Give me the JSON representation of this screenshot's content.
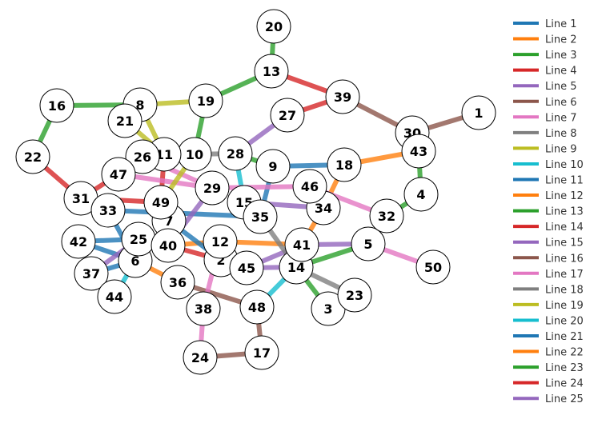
{
  "legend": [
    {
      "name": "Line 1",
      "color": "#1f77b4"
    },
    {
      "name": "Line 2",
      "color": "#ff7f0e"
    },
    {
      "name": "Line 3",
      "color": "#2ca02c"
    },
    {
      "name": "Line 4",
      "color": "#d62728"
    },
    {
      "name": "Line 5",
      "color": "#9467bd"
    },
    {
      "name": "Line 6",
      "color": "#8c564b"
    },
    {
      "name": "Line 7",
      "color": "#e377c2"
    },
    {
      "name": "Line 8",
      "color": "#7f7f7f"
    },
    {
      "name": "Line 9",
      "color": "#bcbd22"
    },
    {
      "name": "Line 10",
      "color": "#17becf"
    },
    {
      "name": "Line 11",
      "color": "#1f77b4"
    },
    {
      "name": "Line 12",
      "color": "#ff7f0e"
    },
    {
      "name": "Line 13",
      "color": "#2ca02c"
    },
    {
      "name": "Line 14",
      "color": "#d62728"
    },
    {
      "name": "Line 15",
      "color": "#9467bd"
    },
    {
      "name": "Line 16",
      "color": "#8c564b"
    },
    {
      "name": "Line 17",
      "color": "#e377c2"
    },
    {
      "name": "Line 18",
      "color": "#7f7f7f"
    },
    {
      "name": "Line 19",
      "color": "#bcbd22"
    },
    {
      "name": "Line 20",
      "color": "#17becf"
    },
    {
      "name": "Line 21",
      "color": "#1f77b4"
    },
    {
      "name": "Line 22",
      "color": "#ff7f0e"
    },
    {
      "name": "Line 23",
      "color": "#2ca02c"
    },
    {
      "name": "Line 24",
      "color": "#d62728"
    },
    {
      "name": "Line 25",
      "color": "#9467bd"
    }
  ],
  "stations": [
    "1",
    "2",
    "3",
    "4",
    "5",
    "6",
    "7",
    "8",
    "9",
    "10",
    "11",
    "12",
    "13",
    "14",
    "15",
    "16",
    "17",
    "20",
    "21",
    "22",
    "23",
    "24",
    "25",
    "26",
    "27",
    "28",
    "29",
    "30",
    "31",
    "32",
    "33",
    "34",
    "35",
    "36",
    "37",
    "38",
    "39",
    "40",
    "41",
    "42",
    "43",
    "44",
    "45",
    "46",
    "47",
    "48",
    "49",
    "50",
    "19",
    "18"
  ],
  "edges": [
    {
      "from": "20",
      "to": "13",
      "color": "#2ca02c"
    },
    {
      "from": "13",
      "to": "19",
      "color": "#2ca02c"
    },
    {
      "from": "19",
      "to": "10",
      "color": "#2ca02c"
    },
    {
      "from": "13",
      "to": "39",
      "color": "#d62728"
    },
    {
      "from": "39",
      "to": "27",
      "color": "#d62728"
    },
    {
      "from": "39",
      "to": "30",
      "color": "#8c564b"
    },
    {
      "from": "30",
      "to": "1",
      "color": "#8c564b"
    },
    {
      "from": "16",
      "to": "8",
      "color": "#2ca02c"
    },
    {
      "from": "16",
      "to": "22",
      "color": "#2ca02c"
    },
    {
      "from": "8",
      "to": "19",
      "color": "#bcbd22"
    },
    {
      "from": "8",
      "to": "11",
      "color": "#bcbd22"
    },
    {
      "from": "21",
      "to": "11",
      "color": "#bcbd22"
    },
    {
      "from": "22",
      "to": "31",
      "color": "#d62728"
    },
    {
      "from": "31",
      "to": "47",
      "color": "#d62728"
    },
    {
      "from": "31",
      "to": "49",
      "color": "#d62728"
    },
    {
      "from": "11",
      "to": "49",
      "color": "#d62728"
    },
    {
      "from": "27",
      "to": "28",
      "color": "#9467bd"
    },
    {
      "from": "10",
      "to": "28",
      "color": "#7f7f7f"
    },
    {
      "from": "28",
      "to": "9",
      "color": "#2ca02c"
    },
    {
      "from": "9",
      "to": "18",
      "color": "#1f77b4"
    },
    {
      "from": "28",
      "to": "15",
      "color": "#17becf"
    },
    {
      "from": "9",
      "to": "35",
      "color": "#1f77b4"
    },
    {
      "from": "18",
      "to": "43",
      "color": "#ff7f0e"
    },
    {
      "from": "43",
      "to": "4",
      "color": "#2ca02c"
    },
    {
      "from": "4",
      "to": "32",
      "color": "#2ca02c"
    },
    {
      "from": "18",
      "to": "34",
      "color": "#ff7f0e"
    },
    {
      "from": "34",
      "to": "41",
      "color": "#ff7f0e"
    },
    {
      "from": "47",
      "to": "29",
      "color": "#e377c2"
    },
    {
      "from": "29",
      "to": "46",
      "color": "#e377c2"
    },
    {
      "from": "46",
      "to": "32",
      "color": "#e377c2"
    },
    {
      "from": "26",
      "to": "29",
      "color": "#e377c2"
    },
    {
      "from": "15",
      "to": "34",
      "color": "#9467bd"
    },
    {
      "from": "10",
      "to": "49",
      "color": "#bcbd22"
    },
    {
      "from": "33",
      "to": "35",
      "color": "#1f77b4"
    },
    {
      "from": "33",
      "to": "6",
      "color": "#1f77b4"
    },
    {
      "from": "42",
      "to": "25",
      "color": "#1f77b4"
    },
    {
      "from": "42",
      "to": "6",
      "color": "#1f77b4"
    },
    {
      "from": "37",
      "to": "6",
      "color": "#1f77b4"
    },
    {
      "from": "37",
      "to": "25",
      "color": "#9467bd"
    },
    {
      "from": "44",
      "to": "6",
      "color": "#17becf"
    },
    {
      "from": "6",
      "to": "36",
      "color": "#ff7f0e"
    },
    {
      "from": "40",
      "to": "12",
      "color": "#ff7f0e"
    },
    {
      "from": "12",
      "to": "41",
      "color": "#ff7f0e"
    },
    {
      "from": "7",
      "to": "2",
      "color": "#1f77b4"
    },
    {
      "from": "40",
      "to": "2",
      "color": "#d62728"
    },
    {
      "from": "2",
      "to": "45",
      "color": "#17becf"
    },
    {
      "from": "45",
      "to": "14",
      "color": "#9467bd"
    },
    {
      "from": "41",
      "to": "5",
      "color": "#9467bd"
    },
    {
      "from": "45",
      "to": "41",
      "color": "#9467bd"
    },
    {
      "from": "14",
      "to": "5",
      "color": "#2ca02c"
    },
    {
      "from": "5",
      "to": "50",
      "color": "#e377c2"
    },
    {
      "from": "35",
      "to": "14",
      "color": "#7f7f7f"
    },
    {
      "from": "14",
      "to": "23",
      "color": "#7f7f7f"
    },
    {
      "from": "14",
      "to": "3",
      "color": "#2ca02c"
    },
    {
      "from": "14",
      "to": "48",
      "color": "#17becf"
    },
    {
      "from": "36",
      "to": "48",
      "color": "#8c564b"
    },
    {
      "from": "48",
      "to": "17",
      "color": "#8c564b"
    },
    {
      "from": "17",
      "to": "24",
      "color": "#8c564b"
    },
    {
      "from": "38",
      "to": "24",
      "color": "#e377c2"
    },
    {
      "from": "38",
      "to": "12",
      "color": "#e377c2"
    },
    {
      "from": "40",
      "to": "29",
      "color": "#9467bd"
    }
  ]
}
